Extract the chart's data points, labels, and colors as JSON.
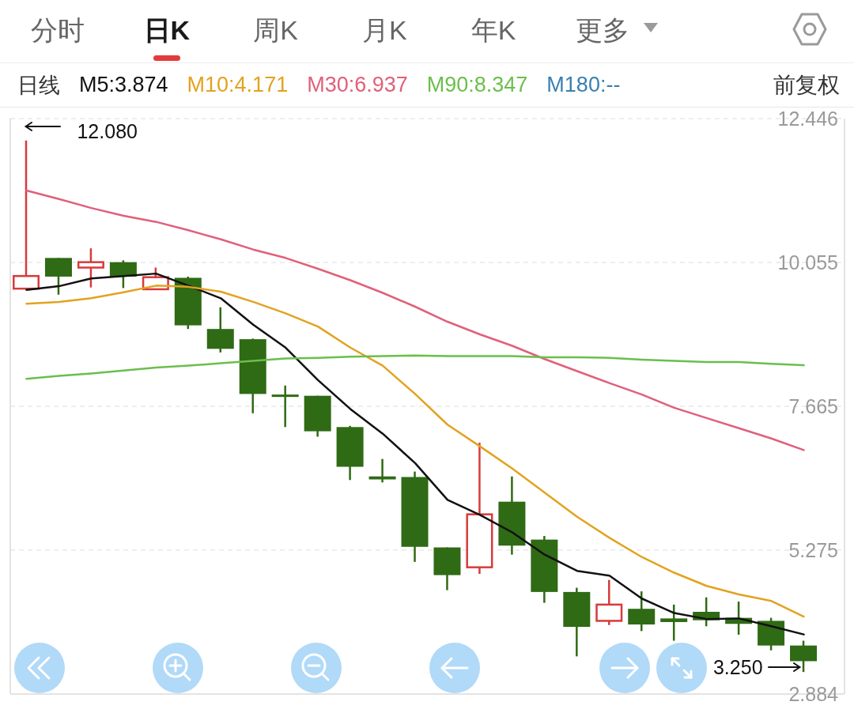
{
  "chart_data": {
    "type": "candlestick",
    "categories": [
      null,
      null,
      null,
      null,
      null,
      null,
      null,
      null,
      null,
      null,
      null,
      null,
      null,
      null,
      null,
      null,
      null,
      null,
      null,
      null,
      null,
      null,
      null,
      null,
      null
    ],
    "ohlc": [
      [
        9.62,
        12.08,
        9.62,
        9.83
      ],
      [
        10.13,
        10.13,
        9.52,
        9.82
      ],
      [
        9.97,
        10.29,
        9.64,
        10.06
      ],
      [
        10.06,
        10.09,
        9.63,
        9.82
      ],
      [
        9.61,
        9.97,
        9.61,
        9.81
      ],
      [
        9.8,
        9.82,
        8.95,
        9.01
      ],
      [
        8.95,
        9.31,
        8.56,
        8.62
      ],
      [
        8.78,
        8.79,
        7.55,
        7.87
      ],
      [
        7.86,
        8.01,
        7.32,
        7.85
      ],
      [
        7.84,
        7.84,
        7.16,
        7.25
      ],
      [
        7.32,
        7.34,
        6.44,
        6.66
      ],
      [
        6.5,
        6.79,
        6.4,
        6.45
      ],
      [
        6.49,
        6.58,
        5.08,
        5.33
      ],
      [
        5.32,
        5.32,
        4.61,
        4.86
      ],
      [
        4.99,
        7.06,
        4.88,
        5.87
      ],
      [
        6.08,
        6.5,
        5.2,
        5.35
      ],
      [
        5.45,
        5.51,
        4.4,
        4.58
      ],
      [
        4.58,
        4.65,
        3.51,
        4.0
      ],
      [
        4.1,
        4.78,
        4.03,
        4.37
      ],
      [
        4.3,
        4.59,
        3.93,
        4.04
      ],
      [
        4.14,
        4.37,
        3.77,
        4.08
      ],
      [
        4.25,
        4.49,
        4.01,
        4.11
      ],
      [
        4.15,
        4.42,
        3.87,
        4.05
      ],
      [
        4.1,
        4.15,
        3.61,
        3.69
      ],
      [
        3.69,
        3.77,
        3.25,
        3.43
      ]
    ],
    "colors": [
      "#d63b3b",
      "#2f6a15",
      "#d63b3b",
      "#2f6a15",
      "#d63b3b",
      "#2f6a15",
      "#2f6a15",
      "#2f6a15",
      "#2f6a15",
      "#2f6a15",
      "#2f6a15",
      "#2f6a15",
      "#2f6a15",
      "#2f6a15",
      "#d63b3b",
      "#2f6a15",
      "#2f6a15",
      "#2f6a15",
      "#d63b3b",
      "#2f6a15",
      "#2f6a15",
      "#2f6a15",
      "#2f6a15",
      "#2f6a15",
      "#2f6a15"
    ],
    "series": [
      {
        "name": "M5:3.874",
        "type": "line",
        "color": "#111111",
        "values": [
          9.6,
          9.66,
          9.79,
          9.83,
          9.87,
          9.67,
          9.46,
          9.02,
          8.64,
          8.1,
          7.62,
          7.21,
          6.72,
          6.11,
          5.86,
          5.57,
          5.2,
          4.93,
          4.85,
          4.47,
          4.23,
          4.13,
          4.14,
          4.01,
          3.874
        ]
      },
      {
        "name": "M10:4.171",
        "type": "line",
        "color": "#e3a21f",
        "values": [
          9.37,
          9.4,
          9.46,
          9.56,
          9.67,
          9.65,
          9.57,
          9.4,
          9.21,
          8.99,
          8.64,
          8.34,
          7.87,
          7.36,
          7.0,
          6.63,
          6.23,
          5.83,
          5.48,
          5.16,
          4.9,
          4.68,
          4.54,
          4.43,
          4.171
        ]
      },
      {
        "name": "M30:6.937",
        "type": "line",
        "color": "#e0607a",
        "values": [
          11.25,
          11.11,
          10.96,
          10.83,
          10.73,
          10.59,
          10.44,
          10.27,
          10.13,
          9.95,
          9.76,
          9.55,
          9.32,
          9.07,
          8.86,
          8.67,
          8.45,
          8.25,
          8.05,
          7.86,
          7.64,
          7.47,
          7.3,
          7.13,
          6.937
        ]
      },
      {
        "name": "M90:8.347",
        "type": "line",
        "color": "#6abf4b",
        "values": [
          8.12,
          8.17,
          8.21,
          8.26,
          8.31,
          8.34,
          8.38,
          8.42,
          8.46,
          8.47,
          8.49,
          8.5,
          8.51,
          8.5,
          8.5,
          8.5,
          8.48,
          8.48,
          8.47,
          8.44,
          8.42,
          8.4,
          8.4,
          8.37,
          8.347
        ]
      },
      {
        "name": "M180:--",
        "type": "line",
        "color": "#3a7fb0",
        "values": [
          null,
          null,
          null,
          null,
          null,
          null,
          null,
          null,
          null,
          null,
          null,
          null,
          null,
          null,
          null,
          null,
          null,
          null,
          null,
          null,
          null,
          null,
          null,
          null,
          null
        ]
      }
    ],
    "ylim": [
      2.884,
      12.446
    ],
    "yticks": [
      2.884,
      5.275,
      7.665,
      10.055,
      12.446
    ],
    "grid": "y",
    "tick_labels": "y",
    "legend": "top",
    "legend_title": "日线",
    "annotations": [
      "分时",
      "日K",
      "周K",
      "月K",
      "年K",
      "更多",
      "前复权",
      "12.080",
      "3.250"
    ]
  }
}
